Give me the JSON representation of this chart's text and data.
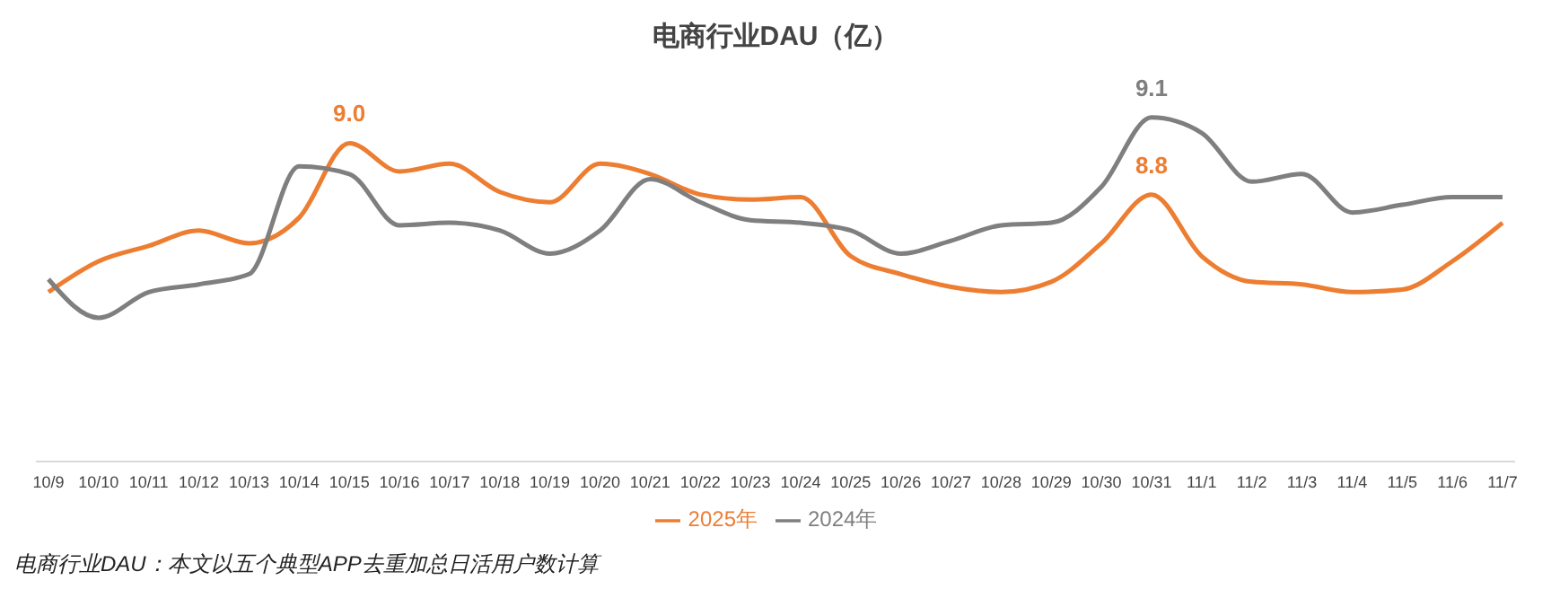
{
  "chart_data": {
    "type": "line",
    "title": "电商行业DAU（亿）",
    "categories": [
      "10/9",
      "10/10",
      "10/11",
      "10/12",
      "10/13",
      "10/14",
      "10/15",
      "10/16",
      "10/17",
      "10/18",
      "10/19",
      "10/20",
      "10/21",
      "10/22",
      "10/23",
      "10/24",
      "10/25",
      "10/26",
      "10/27",
      "10/28",
      "10/29",
      "10/30",
      "10/31",
      "11/1",
      "11/2",
      "11/3",
      "11/4",
      "11/5",
      "11/6",
      "11/7"
    ],
    "series": [
      {
        "name": "2025年",
        "color": "#ed7d31",
        "values": [
          8.42,
          8.54,
          8.6,
          8.66,
          8.61,
          8.71,
          9.0,
          8.89,
          8.92,
          8.81,
          8.77,
          8.92,
          8.88,
          8.8,
          8.78,
          8.79,
          8.56,
          8.49,
          8.44,
          8.42,
          8.46,
          8.61,
          8.8,
          8.56,
          8.46,
          8.45,
          8.42,
          8.43,
          8.54,
          8.69
        ],
        "value_labels": [
          null,
          null,
          null,
          null,
          null,
          null,
          "9.0",
          null,
          null,
          null,
          null,
          null,
          null,
          null,
          null,
          null,
          null,
          null,
          null,
          null,
          null,
          null,
          "8.8",
          null,
          null,
          null,
          null,
          null,
          null,
          null
        ]
      },
      {
        "name": "2024年",
        "color": "#7f7f7f",
        "values": [
          8.47,
          8.32,
          8.42,
          8.45,
          8.49,
          8.91,
          8.88,
          8.68,
          8.69,
          8.66,
          8.57,
          8.66,
          8.86,
          8.77,
          8.7,
          8.69,
          8.66,
          8.57,
          8.62,
          8.68,
          8.69,
          8.83,
          9.1,
          9.04,
          8.85,
          8.88,
          8.73,
          8.76,
          8.79,
          8.79
        ],
        "value_labels": [
          null,
          null,
          null,
          null,
          null,
          null,
          null,
          null,
          null,
          null,
          null,
          null,
          null,
          null,
          null,
          null,
          null,
          null,
          null,
          null,
          null,
          null,
          "9.1",
          null,
          null,
          null,
          null,
          null,
          null,
          null
        ]
      }
    ],
    "tick_labels": "x",
    "grid": false,
    "legend": "bottom",
    "marker": "none",
    "line_style": "solid",
    "annotations": [
      "电商行业DAU：本文以五个典型APP去重加总日活用户数计算"
    ]
  }
}
